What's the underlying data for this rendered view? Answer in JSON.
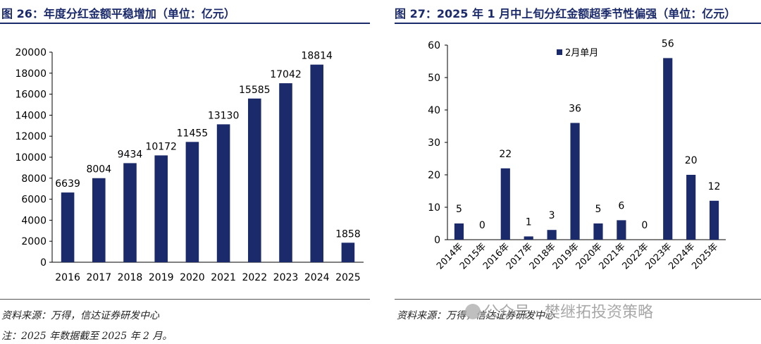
{
  "left": {
    "title": "图 26：年度分红金额平稳增加（单位：亿元）",
    "source": "资料来源：万得，信达证券研发中心",
    "note": "注：2025 年数据截至 2025 年 2 月。"
  },
  "right": {
    "title": "图 27：2025 年 1 月中上旬分红金额超季节性偏强（单位：亿元）",
    "source": "资料来源：万得，信达证券研发中心"
  },
  "watermark": {
    "text": "公众号 · 樊继拓投资策略",
    "icon": "wechat-icon"
  },
  "colors": {
    "bar": "#1b2a6b",
    "title": "#1b2a6b"
  },
  "chart_data": [
    {
      "type": "bar",
      "categories": [
        "2016",
        "2017",
        "2018",
        "2019",
        "2020",
        "2021",
        "2022",
        "2023",
        "2024",
        "2025"
      ],
      "values": [
        6639,
        8004,
        9434,
        10172,
        11455,
        13130,
        15585,
        17042,
        18814,
        1858
      ],
      "ylim": [
        0,
        20000
      ],
      "yticks": [
        0,
        2000,
        4000,
        6000,
        8000,
        10000,
        12000,
        14000,
        16000,
        18000,
        20000
      ],
      "data_labels": true,
      "grid": false
    },
    {
      "type": "bar",
      "categories": [
        "2014年",
        "2015年",
        "2016年",
        "2017年",
        "2018年",
        "2019年",
        "2020年",
        "2021年",
        "2022年",
        "2023年",
        "2024年",
        "2025年"
      ],
      "series": [
        {
          "name": "2月单月",
          "values": [
            5,
            0,
            22,
            1,
            3,
            36,
            5,
            6,
            0,
            56,
            20,
            12
          ]
        }
      ],
      "value_labels": [
        "5",
        "0",
        "22",
        "1",
        "3",
        "36",
        "5",
        "6",
        "0",
        "56",
        "20",
        "12"
      ],
      "ylim": [
        0,
        60
      ],
      "yticks": [
        0,
        10,
        20,
        30,
        40,
        50,
        60
      ],
      "legend": "top-left",
      "data_labels": true,
      "grid": false
    }
  ]
}
